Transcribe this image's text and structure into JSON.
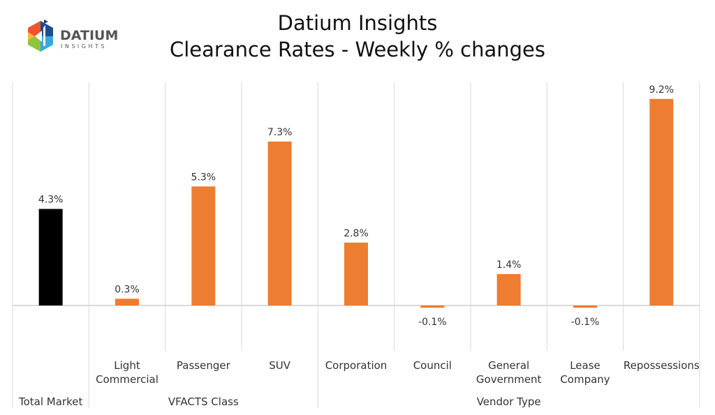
{
  "logo": {
    "name": "DATIUM",
    "sub": "INSIGHTS"
  },
  "chart_data": {
    "type": "bar",
    "title": "Datium Insights",
    "subtitle": "Clearance Rates - Weekly % changes",
    "categories": [
      "Total Market",
      "Light Commercial",
      "Passenger",
      "SUV",
      "Corporation",
      "Council",
      "General Government",
      "Lease Company",
      "Repossessions"
    ],
    "category_lines": [
      [
        "Total Market"
      ],
      [
        "Light",
        "Commercial"
      ],
      [
        "Passenger"
      ],
      [
        "SUV"
      ],
      [
        "Corporation"
      ],
      [
        "Council"
      ],
      [
        "General",
        "Government"
      ],
      [
        "Lease",
        "Company"
      ],
      [
        "Repossessions"
      ]
    ],
    "groups": [
      {
        "label": "",
        "start": 0,
        "end": 0
      },
      {
        "label": "VFACTS Class",
        "start": 1,
        "end": 3
      },
      {
        "label": "Vendor Type",
        "start": 4,
        "end": 8
      }
    ],
    "values": [
      4.3,
      0.3,
      5.3,
      7.3,
      2.8,
      -0.1,
      1.4,
      -0.1,
      9.2
    ],
    "data_labels": [
      "4.3%",
      "0.3%",
      "5.3%",
      "7.3%",
      "2.8%",
      "-0.1%",
      "1.4%",
      "-0.1%",
      "9.2%"
    ],
    "colors": [
      "#000000",
      "#ED7D31",
      "#ED7D31",
      "#ED7D31",
      "#ED7D31",
      "#ED7D31",
      "#ED7D31",
      "#ED7D31",
      "#ED7D31"
    ],
    "ylim": [
      -2,
      10
    ],
    "xlabel": "",
    "ylabel": "",
    "grid": "vertical category separators",
    "legend": "none"
  }
}
